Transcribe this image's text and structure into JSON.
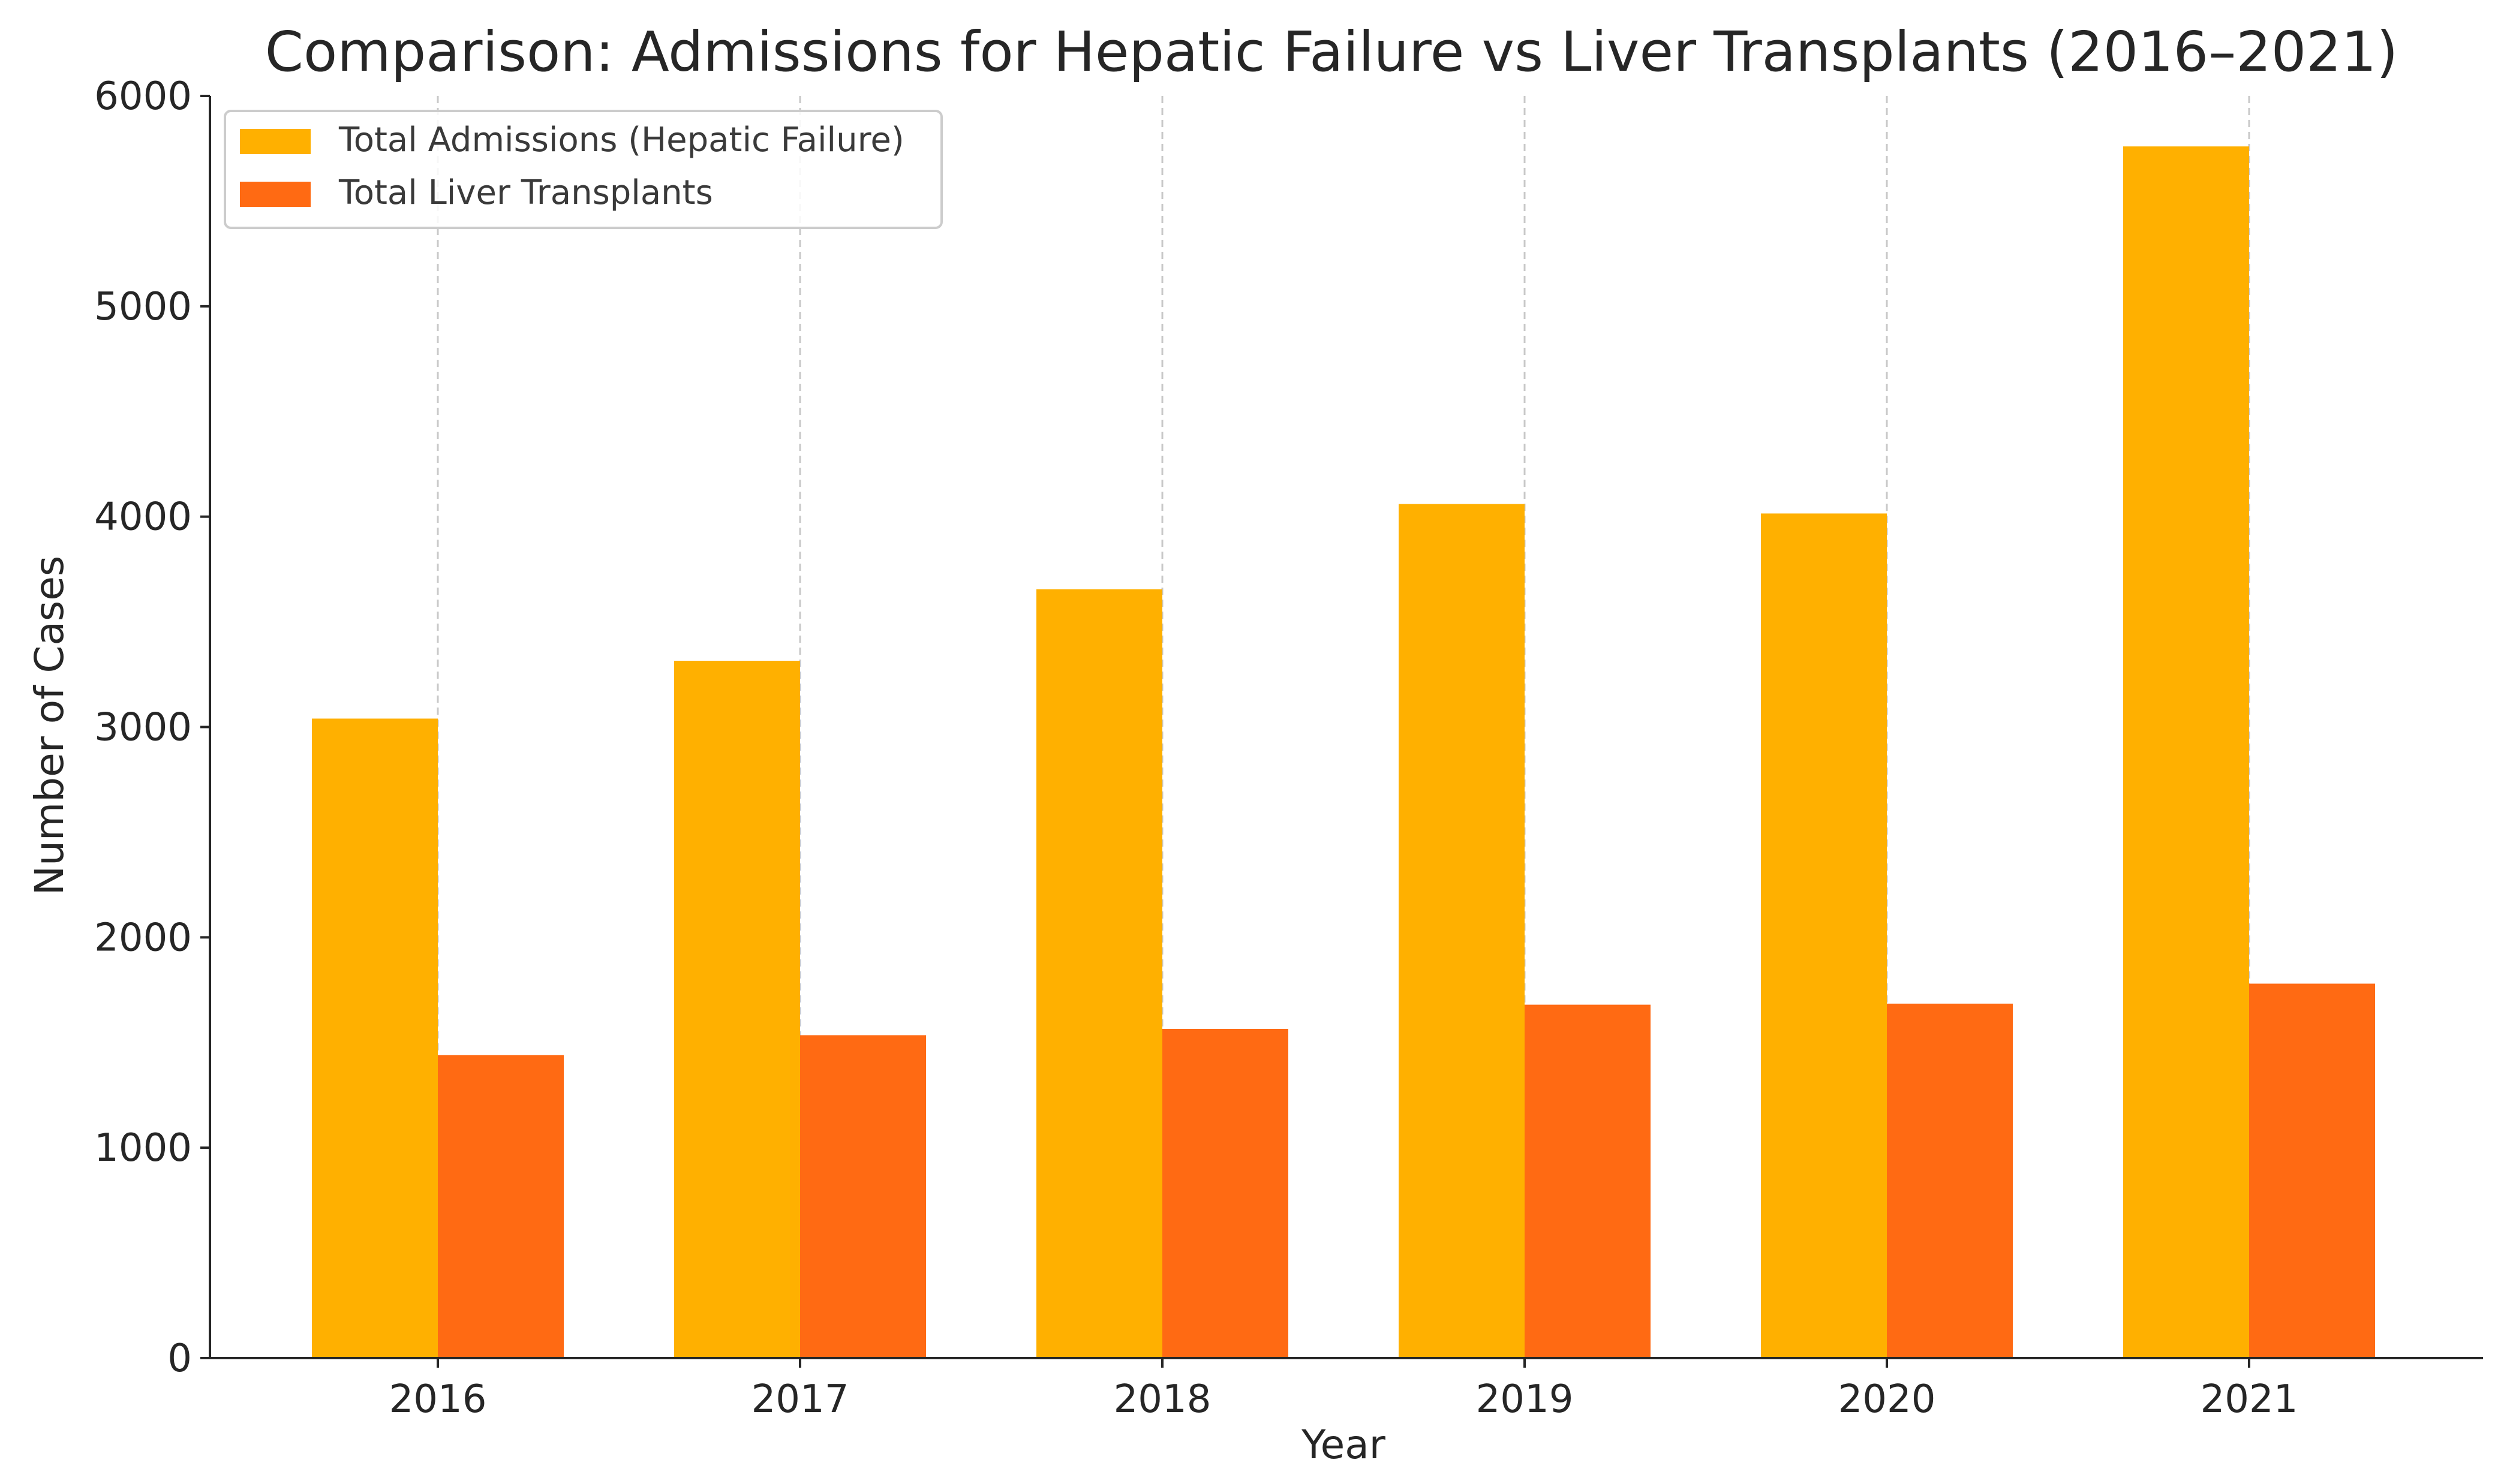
{
  "chart_data": {
    "type": "bar",
    "title": "Comparison: Admissions for Hepatic Failure vs Liver Transplants (2016–2021)",
    "xlabel": "Year",
    "ylabel": "Number of Cases",
    "categories": [
      "2016",
      "2017",
      "2018",
      "2019",
      "2020",
      "2021"
    ],
    "series": [
      {
        "name": "Total Admissions (Hepatic Failure)",
        "color": "#FFB000",
        "values": [
          3040,
          3315,
          3655,
          4060,
          4015,
          5760
        ]
      },
      {
        "name": "Total Liver Transplants",
        "color": "#FF6A13",
        "values": [
          1440,
          1535,
          1565,
          1680,
          1685,
          1780
        ]
      }
    ],
    "ylim": [
      0,
      6000
    ],
    "yticks": [
      0,
      1000,
      2000,
      3000,
      4000,
      5000,
      6000
    ],
    "grid": "x-dashed",
    "legend_position": "top-left"
  }
}
